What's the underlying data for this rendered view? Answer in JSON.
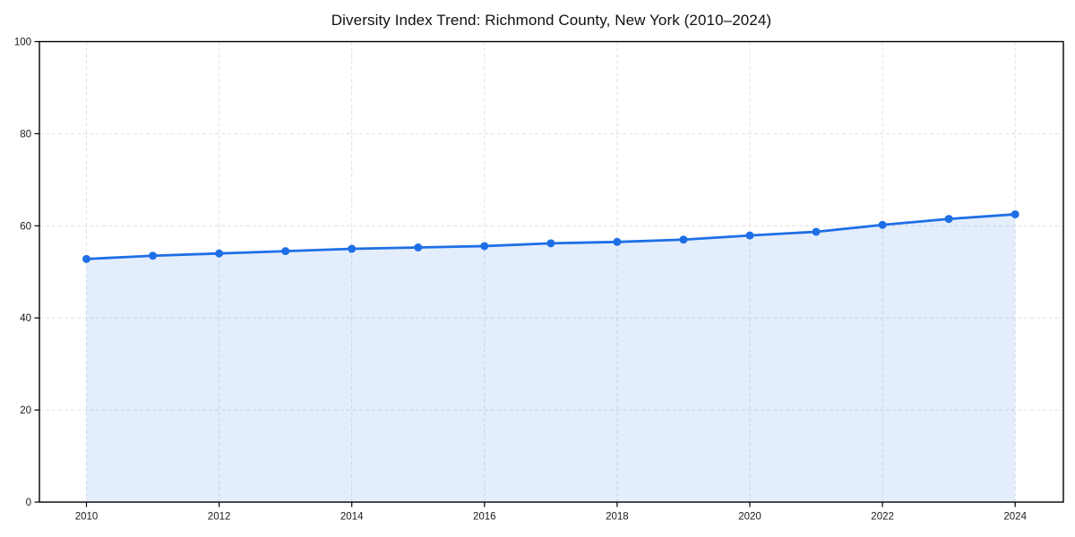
{
  "page": {
    "background_color": "#ffffff"
  },
  "chart_data": {
    "type": "area",
    "title": "Diversity Index Trend: Richmond County, New York (2010–2024)",
    "x": [
      2010,
      2011,
      2012,
      2013,
      2014,
      2015,
      2016,
      2017,
      2018,
      2019,
      2020,
      2021,
      2022,
      2023,
      2024
    ],
    "series": [
      {
        "name": "Diversity Index",
        "values": [
          52.8,
          53.5,
          54.0,
          54.5,
          55.0,
          55.3,
          55.6,
          56.2,
          56.5,
          57.0,
          57.9,
          58.7,
          60.2,
          61.5,
          62.5
        ]
      }
    ],
    "xlabel": "",
    "ylabel": "",
    "ylim": [
      0,
      100
    ],
    "xlim": [
      2010,
      2024
    ],
    "yticks": [
      0,
      20,
      40,
      60,
      80,
      100
    ],
    "ytick_labels": [
      "0",
      "20",
      "40",
      "60",
      "80",
      "100"
    ],
    "xticks": [
      2010,
      2012,
      2014,
      2016,
      2018,
      2020,
      2022,
      2024
    ],
    "xtick_labels": [
      "2010",
      "2012",
      "2014",
      "2016",
      "2018",
      "2020",
      "2022",
      "2024"
    ],
    "grid": true,
    "grid_style": "dashed",
    "grid_color": "#e0e0e0",
    "legend_position": "none",
    "line_color": "#1e6fe6",
    "fill_color": "rgba(30, 111, 230, 0.12)",
    "marker": "circle",
    "axis_color": "#000000",
    "text_color": "#1a1a1a"
  }
}
